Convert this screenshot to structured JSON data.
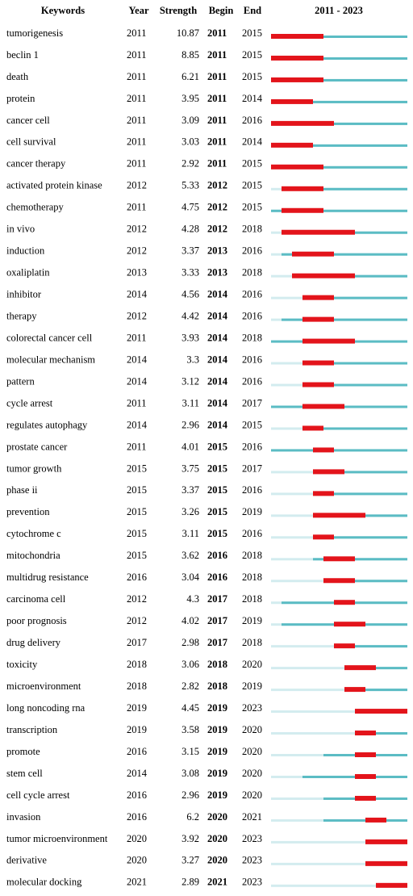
{
  "header": {
    "keywords": "Keywords",
    "year": "Year",
    "strength": "Strength",
    "begin": "Begin",
    "end": "End"
  },
  "timeline": {
    "label": "2011 - 2023",
    "start": 2011,
    "end": 2023
  },
  "table": {
    "rows": [
      [
        "tumorigenesis",
        2011,
        10.87,
        2011,
        2015
      ],
      [
        "beclin 1",
        2011,
        8.85,
        2011,
        2015
      ],
      [
        "death",
        2011,
        6.21,
        2011,
        2015
      ],
      [
        "protein",
        2011,
        3.95,
        2011,
        2014
      ],
      [
        "cancer cell",
        2011,
        3.09,
        2011,
        2016
      ],
      [
        "cell survival",
        2011,
        3.03,
        2011,
        2014
      ],
      [
        "cancer therapy",
        2011,
        2.92,
        2011,
        2015
      ],
      [
        "activated protein kinase",
        2012,
        5.33,
        2012,
        2015
      ],
      [
        "chemotherapy",
        2011,
        4.75,
        2012,
        2015
      ],
      [
        "in vivo",
        2012,
        4.28,
        2012,
        2018
      ],
      [
        "induction",
        2012,
        3.37,
        2013,
        2016
      ],
      [
        "oxaliplatin",
        2013,
        3.33,
        2013,
        2018
      ],
      [
        "inhibitor",
        2014,
        4.56,
        2014,
        2016
      ],
      [
        "therapy",
        2012,
        4.42,
        2014,
        2016
      ],
      [
        "colorectal cancer cell",
        2011,
        3.93,
        2014,
        2018
      ],
      [
        "molecular mechanism",
        2014,
        3.3,
        2014,
        2016
      ],
      [
        "pattern",
        2014,
        3.12,
        2014,
        2016
      ],
      [
        "cycle arrest",
        2011,
        3.11,
        2014,
        2017
      ],
      [
        "regulates autophagy",
        2014,
        2.96,
        2014,
        2015
      ],
      [
        "prostate cancer",
        2011,
        4.01,
        2015,
        2016
      ],
      [
        "tumor growth",
        2015,
        3.75,
        2015,
        2017
      ],
      [
        "phase ii",
        2015,
        3.37,
        2015,
        2016
      ],
      [
        "prevention",
        2015,
        3.26,
        2015,
        2019
      ],
      [
        "cytochrome c",
        2015,
        3.11,
        2015,
        2016
      ],
      [
        "mitochondria",
        2015,
        3.62,
        2016,
        2018
      ],
      [
        "multidrug resistance",
        2016,
        3.04,
        2016,
        2018
      ],
      [
        "carcinoma cell",
        2012,
        4.3,
        2017,
        2018
      ],
      [
        "poor prognosis",
        2012,
        4.02,
        2017,
        2019
      ],
      [
        "drug delivery",
        2017,
        2.98,
        2017,
        2018
      ],
      [
        "toxicity",
        2018,
        3.06,
        2018,
        2020
      ],
      [
        "microenvironment",
        2018,
        2.82,
        2018,
        2019
      ],
      [
        "long noncoding rna",
        2019,
        4.45,
        2019,
        2023
      ],
      [
        "transcription",
        2019,
        3.58,
        2019,
        2020
      ],
      [
        "promote",
        2016,
        3.15,
        2019,
        2020
      ],
      [
        "stem cell",
        2014,
        3.08,
        2019,
        2020
      ],
      [
        "cell cycle arrest",
        2016,
        2.96,
        2019,
        2020
      ],
      [
        "invasion",
        2016,
        6.2,
        2020,
        2021
      ],
      [
        "tumor microenvironment",
        2020,
        3.92,
        2020,
        2023
      ],
      [
        "derivative",
        2020,
        3.27,
        2020,
        2023
      ],
      [
        "molecular docking",
        2021,
        2.89,
        2021,
        2023
      ]
    ]
  }
}
